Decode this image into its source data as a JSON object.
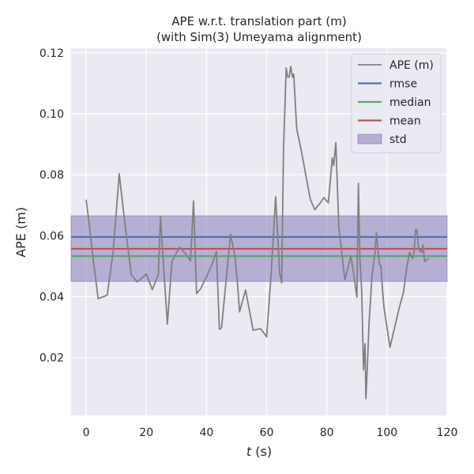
{
  "chart_data": {
    "type": "line",
    "title": "APE w.r.t. translation part (m)",
    "subtitle": "(with Sim(3) Umeyama alignment)",
    "xlabel_var": "t",
    "xlabel_unit": " (s)",
    "ylabel": "APE (m)",
    "xlim": [
      -5,
      120
    ],
    "ylim": [
      0.001,
      0.1215
    ],
    "xticks": [
      0,
      20,
      40,
      60,
      80,
      100,
      120
    ],
    "yticks": [
      0.02,
      0.04,
      0.06,
      0.08,
      0.1,
      0.12
    ],
    "ytick_labels": [
      "0.02",
      "0.04",
      "0.06",
      "0.08",
      "0.10",
      "0.12"
    ],
    "grid": true,
    "legend_placement": "top-right",
    "colors": {
      "background": "#eaeaf2",
      "ape": "#808080",
      "rmse": "#4c72b0",
      "median": "#55a868",
      "mean": "#c44e52",
      "std_fill": "#8172b3"
    },
    "stats": {
      "rmse": 0.0596,
      "median": 0.0533,
      "mean": 0.0557,
      "std_low": 0.045,
      "std_high": 0.0665
    },
    "legend": [
      {
        "key": "ape",
        "label": "APE (m)",
        "kind": "line"
      },
      {
        "key": "rmse",
        "label": "rmse",
        "kind": "line"
      },
      {
        "key": "median",
        "label": "median",
        "kind": "line"
      },
      {
        "key": "mean",
        "label": "mean",
        "kind": "line"
      },
      {
        "key": "std",
        "label": "std",
        "kind": "patch"
      }
    ],
    "series": [
      {
        "name": "APE (m)",
        "x": [
          0,
          1,
          2,
          4,
          7,
          9,
          11,
          13,
          15,
          17,
          19,
          20,
          22,
          24,
          24.7,
          25.4,
          27,
          28.5,
          31,
          33,
          34.7,
          35.7,
          36.7,
          38,
          40,
          42,
          43.3,
          44.3,
          45,
          46.5,
          48,
          49.5,
          50.3,
          51,
          53,
          55.5,
          58,
          60,
          61.5,
          63,
          64.3,
          65,
          65.6,
          66.5,
          67,
          67.5,
          68,
          68.6,
          69,
          70,
          71.5,
          73,
          74.5,
          76,
          78,
          79,
          80.5,
          81.3,
          81.8,
          82.3,
          83,
          84,
          86,
          88,
          89,
          90,
          90.5,
          91,
          91.6,
          92.2,
          92.7,
          93,
          93.5,
          94,
          95,
          96,
          96.5,
          97,
          97.5,
          98,
          98.5,
          99,
          101,
          104,
          105.5,
          106.5,
          107.5,
          108.5,
          109,
          109.5,
          110,
          110.5,
          111,
          111.5,
          112,
          112.5,
          113,
          114
        ],
        "y": [
          0.0718,
          0.064,
          0.055,
          0.0393,
          0.0405,
          0.055,
          0.0803,
          0.063,
          0.0472,
          0.0448,
          0.0465,
          0.0474,
          0.0423,
          0.0472,
          0.0663,
          0.0552,
          0.031,
          0.0515,
          0.0562,
          0.0542,
          0.0517,
          0.0714,
          0.041,
          0.0425,
          0.0465,
          0.051,
          0.0548,
          0.0293,
          0.0298,
          0.045,
          0.0605,
          0.053,
          0.0445,
          0.035,
          0.0422,
          0.029,
          0.0295,
          0.0268,
          0.0475,
          0.0728,
          0.048,
          0.0445,
          0.088,
          0.115,
          0.112,
          0.112,
          0.1155,
          0.112,
          0.113,
          0.095,
          0.088,
          0.08,
          0.072,
          0.0685,
          0.071,
          0.0725,
          0.0708,
          0.0795,
          0.0855,
          0.083,
          0.0905,
          0.0628,
          0.0455,
          0.0534,
          0.047,
          0.0398,
          0.0772,
          0.0525,
          0.042,
          0.016,
          0.0245,
          0.0065,
          0.0175,
          0.0305,
          0.0465,
          0.0545,
          0.061,
          0.055,
          0.0505,
          0.05,
          0.0425,
          0.0365,
          0.0234,
          0.036,
          0.0415,
          0.049,
          0.0545,
          0.0525,
          0.0545,
          0.062,
          0.0618,
          0.0555,
          0.055,
          0.0545,
          0.057,
          0.0515,
          0.052,
          0.0525
        ]
      }
    ]
  }
}
